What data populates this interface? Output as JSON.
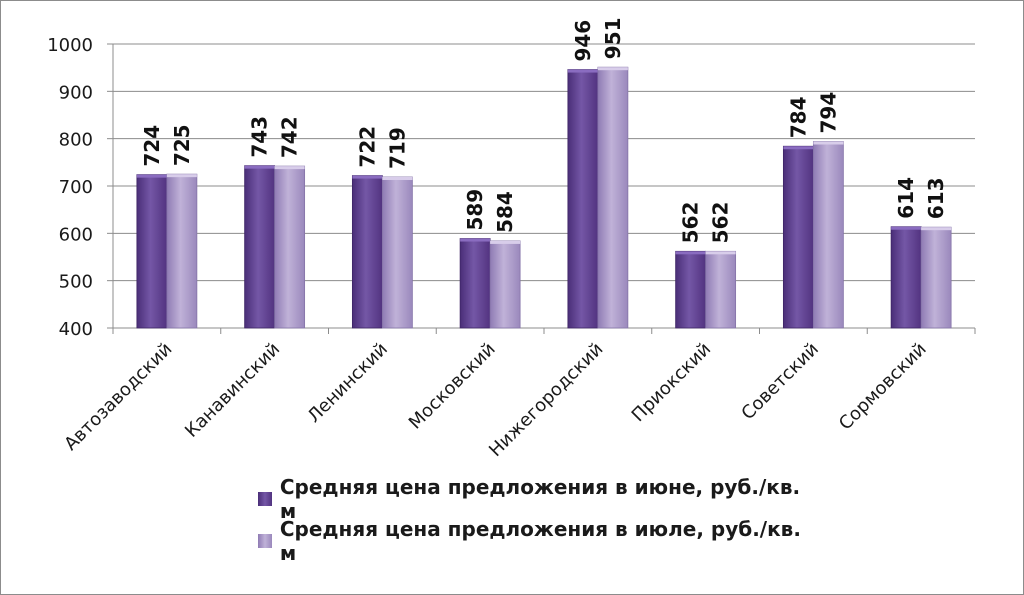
{
  "chart_data": {
    "type": "bar",
    "categories": [
      "Автозаводский",
      "Канавинский",
      "Ленинский",
      "Московский",
      "Нижегородский",
      "Приокский",
      "Советский",
      "Сормовский"
    ],
    "series": [
      {
        "name": "Средняя цена предложения в июне, руб./кв. м",
        "values": [
          724,
          743,
          722,
          589,
          946,
          562,
          784,
          614
        ],
        "color": "#6a4a9a"
      },
      {
        "name": "Средняя цена предложения в июле, руб./кв. м",
        "values": [
          725,
          742,
          719,
          584,
          951,
          562,
          794,
          613
        ],
        "color": "#a796c6"
      }
    ],
    "ylim": [
      400,
      1000
    ],
    "yticks": [
      "400",
      "500",
      "600",
      "700",
      "800",
      "900",
      "1000"
    ],
    "grid": true,
    "legend_position": "bottom"
  }
}
